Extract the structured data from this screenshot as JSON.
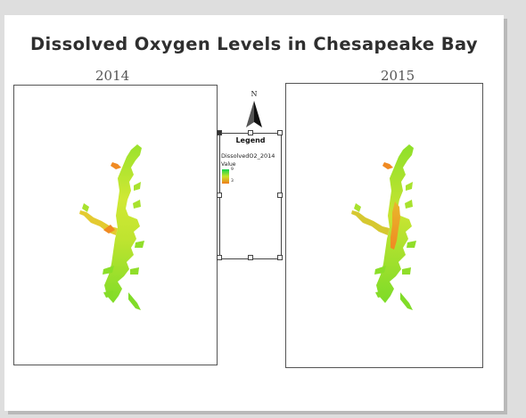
{
  "title": "Dissolved Oxygen Levels in Chesapeake Bay",
  "maps": [
    {
      "year": "2014"
    },
    {
      "year": "2015"
    }
  ],
  "north_arrow": {
    "letter": "N"
  },
  "legend": {
    "title": "Legend",
    "layer": "DissolvedO2_2014",
    "field": "Value",
    "high": "9",
    "low": "3",
    "ramp_colors": [
      "#12d24a",
      "#c8e428",
      "#f07c1c"
    ]
  },
  "colors": {
    "water_high": "#7fe02a",
    "water_mid": "#d6e832",
    "water_low": "#f08a22",
    "frame_border": "#555555",
    "background": "#dedede"
  }
}
